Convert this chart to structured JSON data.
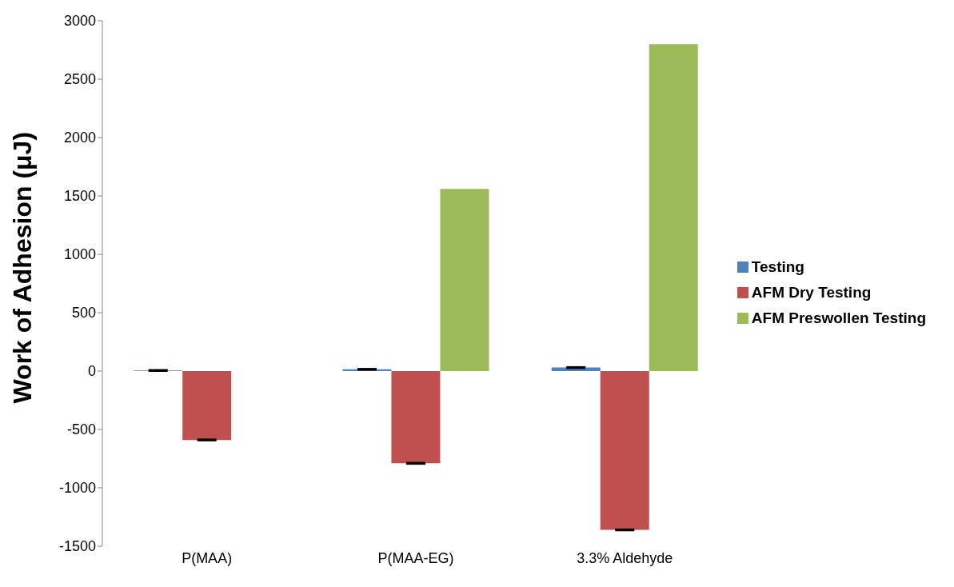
{
  "chart_data": {
    "type": "bar",
    "ylabel": "Work of Adhesion (μJ)",
    "categories": [
      "P(MAA)",
      "P(MAA-EG)",
      "3.3% Aldehyde"
    ],
    "series": [
      {
        "name": "Testing",
        "color": "#4f81bd",
        "values": [
          5,
          15,
          30
        ],
        "errors": [
          5,
          5,
          5
        ]
      },
      {
        "name": "AFM Dry Testing",
        "color": "#c0504d",
        "values": [
          -590,
          -790,
          -1360
        ],
        "errors": [
          5,
          5,
          5
        ]
      },
      {
        "name": "AFM Preswollen Testing",
        "color": "#9bbb59",
        "values": [
          null,
          1560,
          2800
        ]
      }
    ],
    "ylim": [
      -1500,
      3000
    ],
    "yticks": [
      -1500,
      -1000,
      -500,
      0,
      500,
      1000,
      1500,
      2000,
      2500,
      3000
    ],
    "legend": "right"
  }
}
